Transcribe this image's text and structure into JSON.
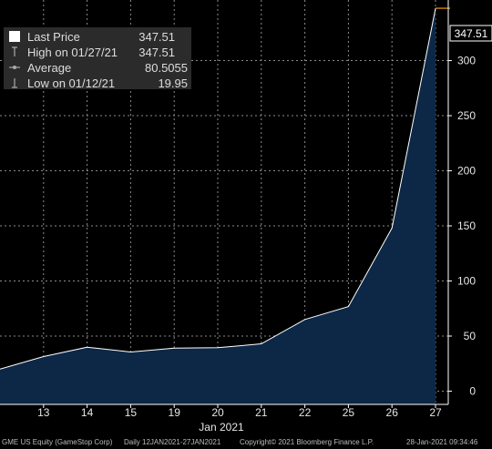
{
  "chart_data": {
    "type": "area",
    "categories": [
      "12",
      "13",
      "14",
      "15",
      "19",
      "20",
      "21",
      "22",
      "25",
      "26",
      "27"
    ],
    "values": [
      19.95,
      31.4,
      39.9,
      35.5,
      39.1,
      39.4,
      43.0,
      65.0,
      76.8,
      148.0,
      347.51
    ],
    "x_tick_labels": [
      "13",
      "14",
      "15",
      "19",
      "20",
      "21",
      "22",
      "25",
      "26",
      "27"
    ],
    "xlabel": "Jan 2021",
    "ylim": [
      -12,
      355
    ],
    "y_ticks": [
      0,
      50,
      100,
      150,
      200,
      250,
      300
    ],
    "last_value_label": "347.51",
    "grid": true,
    "colors": {
      "fill": "#0d2847",
      "line": "#ffffff",
      "grid": "#8a8a8a",
      "accent": "#f39c12",
      "background": "#000000"
    }
  },
  "legend": [
    {
      "icon": "filled-square-icon",
      "label": "Last Price",
      "value": "347.51"
    },
    {
      "icon": "high-marker-icon",
      "label": "High on 01/27/21",
      "value": "347.51"
    },
    {
      "icon": "average-marker-icon",
      "label": "Average",
      "value": "80.5055"
    },
    {
      "icon": "low-marker-icon",
      "label": "Low on 01/12/21",
      "value": "19.95"
    }
  ],
  "footer": {
    "security": "GME US Equity (GameStop Corp)",
    "range": "Daily 12JAN2021-27JAN2021",
    "copyright": "Copyright© 2021 Bloomberg Finance L.P.",
    "timestamp": "28-Jan-2021 09:34:46"
  }
}
